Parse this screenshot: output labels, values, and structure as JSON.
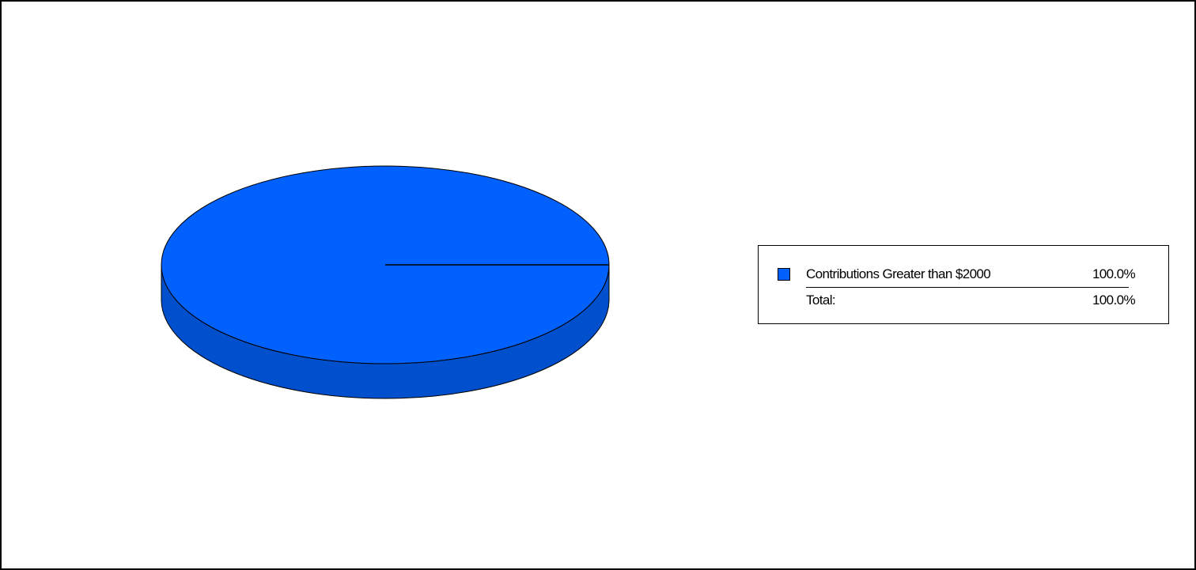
{
  "chart_data": {
    "type": "pie",
    "style": "3d",
    "slices": [
      {
        "label": "Contributions Greater than $2000",
        "value": 100.0,
        "percent_label": "100.0%",
        "color": "#0061ff",
        "side_color": "#004fcc"
      }
    ],
    "total": {
      "label": "Total:",
      "percent_label": "100.0%"
    },
    "legend_position": "right"
  }
}
